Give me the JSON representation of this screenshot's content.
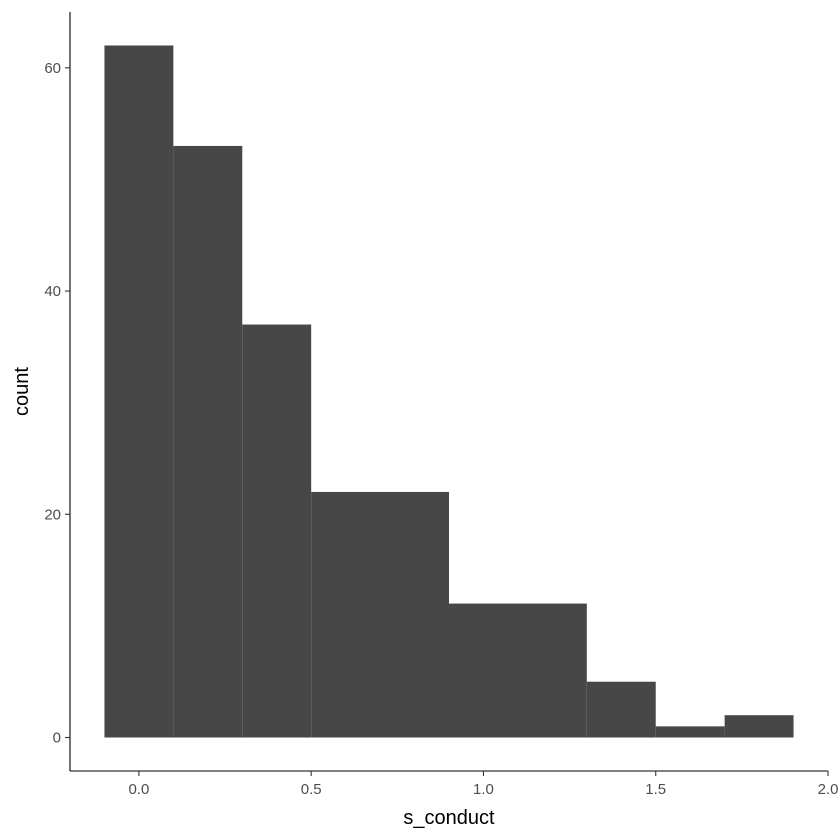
{
  "chart_data": {
    "type": "bar",
    "xlabel": "s_conduct",
    "ylabel": "count",
    "xlim": [
      -0.2,
      2.0
    ],
    "ylim": [
      -3,
      65
    ],
    "x_ticks": [
      0.0,
      0.5,
      1.0,
      1.5,
      2.0
    ],
    "x_tick_labels": [
      "0.0",
      "0.5",
      "1.0",
      "1.5",
      "2.0"
    ],
    "y_ticks": [
      0,
      20,
      40,
      60
    ],
    "y_tick_labels": [
      "0",
      "20",
      "40",
      "60"
    ],
    "bin_edges": [
      -0.1,
      0.1,
      0.3,
      0.5,
      0.9,
      1.3,
      1.5,
      1.7,
      1.9
    ],
    "bins": [
      {
        "x0": -0.1,
        "x1": 0.1,
        "count": 62
      },
      {
        "x0": 0.1,
        "x1": 0.3,
        "count": 53
      },
      {
        "x0": 0.3,
        "x1": 0.5,
        "count": 37
      },
      {
        "x0": 0.5,
        "x1": 0.9,
        "count": 22
      },
      {
        "x0": 0.9,
        "x1": 1.3,
        "count": 12
      },
      {
        "x0": 1.3,
        "x1": 1.5,
        "count": 5
      },
      {
        "x0": 1.5,
        "x1": 1.7,
        "count": 1
      },
      {
        "x0": 1.7,
        "x1": 1.9,
        "count": 2
      }
    ],
    "bar_color": "#474747",
    "grid": false,
    "legend": "none"
  }
}
